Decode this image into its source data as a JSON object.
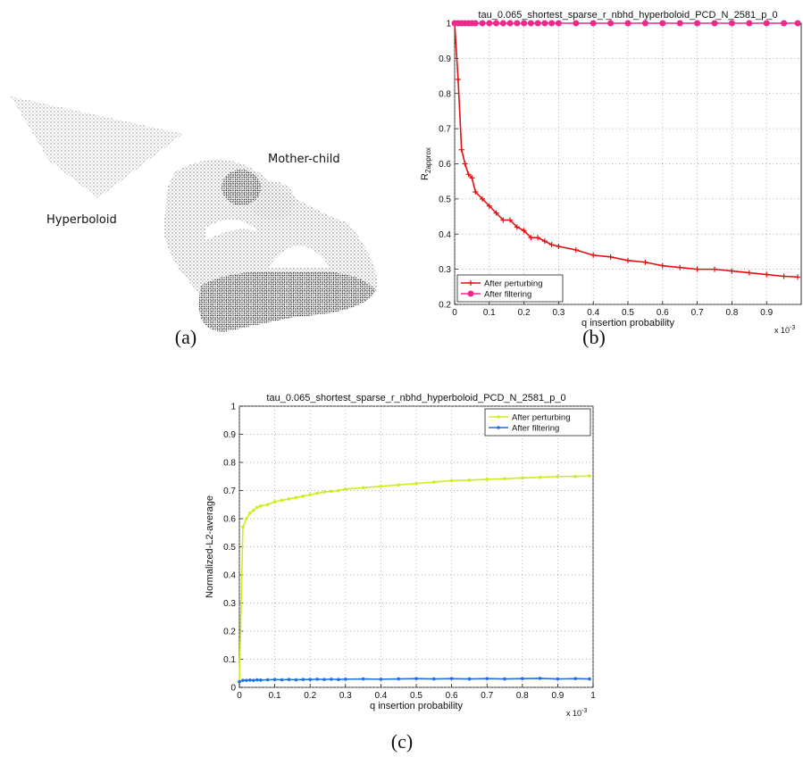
{
  "panel_a": {
    "labels": [
      "Hyperboloid",
      "Mother-child"
    ]
  },
  "captions": [
    "(a)",
    "(b)",
    "(c)"
  ],
  "chart_data": [
    {
      "type": "line",
      "title": "tau_0.065_shortest_sparse_r_nbhd_hyperboloid_PCD_N_2581_p_0",
      "xlabel": "q insertion probability",
      "ylabel": {
        "text": "R",
        "subscript": "2approx"
      },
      "x_multiplier": {
        "base": "x 10",
        "exponent": "-3"
      },
      "x": [
        0,
        0.01,
        0.02,
        0.03,
        0.04,
        0.05,
        0.06,
        0.08,
        0.1,
        0.12,
        0.14,
        0.16,
        0.18,
        0.2,
        0.22,
        0.24,
        0.26,
        0.28,
        0.3,
        0.35,
        0.4,
        0.45,
        0.5,
        0.55,
        0.6,
        0.65,
        0.7,
        0.75,
        0.8,
        0.85,
        0.9,
        0.95,
        0.99
      ],
      "xlim": [
        0,
        1
      ],
      "xticks": [
        0,
        0.1,
        0.2,
        0.3,
        0.4,
        0.5,
        0.6,
        0.7,
        0.8,
        0.9
      ],
      "ylim": [
        0.2,
        1
      ],
      "yticks": [
        0.2,
        0.3,
        0.4,
        0.5,
        0.6,
        0.7,
        0.8,
        0.9,
        1
      ],
      "grid": true,
      "legend": "lower left",
      "series": [
        {
          "name": "After perturbing",
          "color": "#e01010",
          "marker": "+",
          "values": [
            1,
            0.84,
            0.64,
            0.6,
            0.57,
            0.56,
            0.52,
            0.5,
            0.48,
            0.46,
            0.44,
            0.44,
            0.42,
            0.41,
            0.39,
            0.39,
            0.38,
            0.37,
            0.365,
            0.355,
            0.34,
            0.335,
            0.325,
            0.32,
            0.31,
            0.305,
            0.3,
            0.3,
            0.295,
            0.29,
            0.285,
            0.28,
            0.278
          ]
        },
        {
          "name": "After filtering",
          "color": "#f0288c",
          "marker": "o",
          "values": [
            1,
            1,
            1,
            1,
            1,
            1,
            1,
            1,
            1,
            1,
            1,
            1,
            1,
            1,
            1,
            1,
            1,
            1,
            1,
            1,
            1,
            1,
            1,
            1,
            1,
            1,
            1,
            1,
            1,
            1,
            1,
            1,
            1
          ]
        }
      ]
    },
    {
      "type": "line",
      "title": "tau_0.065_shortest_sparse_r_nbhd_hyperboloid_PCD_N_2581_p_0",
      "xlabel": "q insertion probability",
      "ylabel": {
        "text": "Normalized-L2-average"
      },
      "x_multiplier": {
        "base": "x 10",
        "exponent": "-3"
      },
      "x": [
        0,
        0.01,
        0.02,
        0.03,
        0.04,
        0.05,
        0.06,
        0.08,
        0.1,
        0.12,
        0.14,
        0.16,
        0.18,
        0.2,
        0.22,
        0.24,
        0.26,
        0.28,
        0.3,
        0.35,
        0.4,
        0.45,
        0.5,
        0.55,
        0.6,
        0.65,
        0.7,
        0.75,
        0.8,
        0.85,
        0.9,
        0.95,
        0.99
      ],
      "xlim": [
        0,
        1
      ],
      "xticks": [
        0,
        0.1,
        0.2,
        0.3,
        0.4,
        0.5,
        0.6,
        0.7,
        0.8,
        0.9,
        1
      ],
      "ylim": [
        0,
        1
      ],
      "yticks": [
        0,
        0.1,
        0.2,
        0.3,
        0.4,
        0.5,
        0.6,
        0.7,
        0.8,
        0.9,
        1
      ],
      "grid": true,
      "legend": "upper right",
      "series": [
        {
          "name": "After perturbing",
          "color": "#cdee1e",
          "marker": ".",
          "values": [
            0.02,
            0.57,
            0.6,
            0.62,
            0.63,
            0.64,
            0.645,
            0.65,
            0.66,
            0.665,
            0.67,
            0.675,
            0.68,
            0.685,
            0.69,
            0.695,
            0.697,
            0.7,
            0.705,
            0.71,
            0.715,
            0.72,
            0.725,
            0.73,
            0.735,
            0.737,
            0.74,
            0.742,
            0.745,
            0.747,
            0.75,
            0.75,
            0.752
          ]
        },
        {
          "name": "After filtering",
          "color": "#1f6fe0",
          "marker": ".",
          "values": [
            0.02,
            0.025,
            0.025,
            0.026,
            0.025,
            0.027,
            0.026,
            0.027,
            0.028,
            0.027,
            0.028,
            0.027,
            0.028,
            0.028,
            0.029,
            0.028,
            0.029,
            0.028,
            0.029,
            0.03,
            0.029,
            0.03,
            0.031,
            0.03,
            0.031,
            0.03,
            0.031,
            0.03,
            0.031,
            0.032,
            0.03,
            0.031,
            0.03
          ]
        }
      ]
    }
  ]
}
